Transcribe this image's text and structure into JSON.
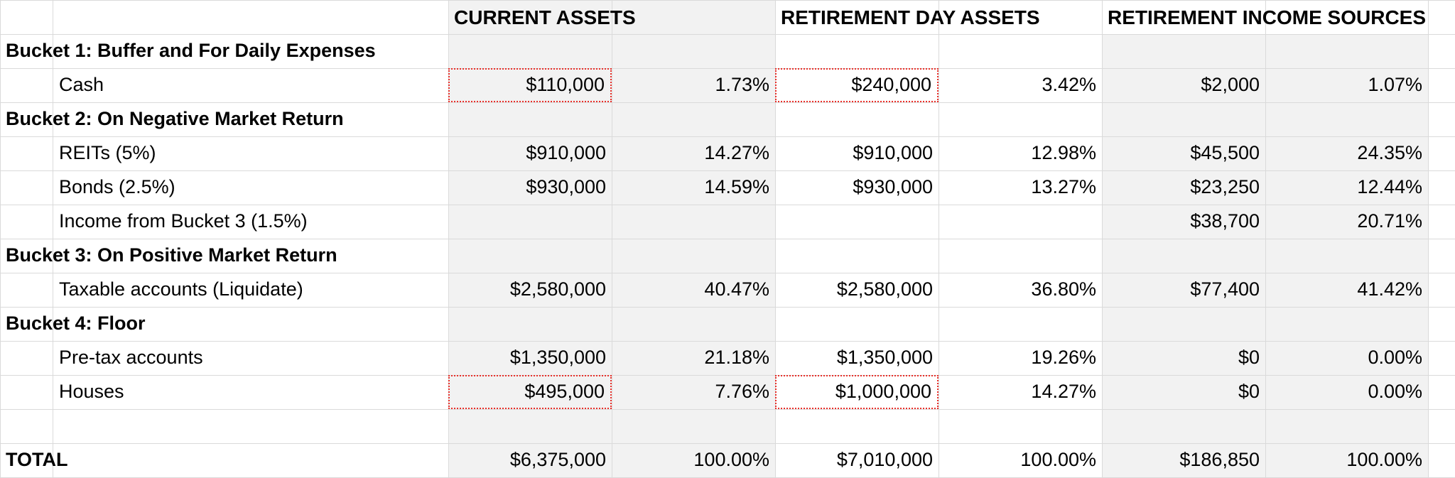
{
  "colors": {
    "shade": "#f2f2f2",
    "grid": "#dadada",
    "highlight_border": "#e8302a"
  },
  "headers": {
    "current": "CURRENT ASSETS",
    "retirement": "RETIREMENT DAY ASSETS",
    "income": "RETIREMENT INCOME SOURCES"
  },
  "buckets": {
    "b1": "Bucket 1: Buffer and For Daily Expenses",
    "b2": "Bucket 2: On Negative Market Return",
    "b3": "Bucket 3: On Positive Market Return",
    "b4": "Bucket 4: Floor"
  },
  "rows": {
    "cash": {
      "label": "Cash",
      "cur": "$110,000",
      "cur_pct": "1.73%",
      "ret": "$240,000",
      "ret_pct": "3.42%",
      "inc": "$2,000",
      "inc_pct": "1.07%"
    },
    "reits": {
      "label": "REITs (5%)",
      "cur": "$910,000",
      "cur_pct": "14.27%",
      "ret": "$910,000",
      "ret_pct": "12.98%",
      "inc": "$45,500",
      "inc_pct": "24.35%"
    },
    "bonds": {
      "label": "Bonds (2.5%)",
      "cur": "$930,000",
      "cur_pct": "14.59%",
      "ret": "$930,000",
      "ret_pct": "13.27%",
      "inc": "$23,250",
      "inc_pct": "12.44%"
    },
    "incb3": {
      "label": "Income from Bucket 3 (1.5%)",
      "inc": "$38,700",
      "inc_pct": "20.71%"
    },
    "taxable": {
      "label": "Taxable accounts (Liquidate)",
      "cur": "$2,580,000",
      "cur_pct": "40.47%",
      "ret": "$2,580,000",
      "ret_pct": "36.80%",
      "inc": "$77,400",
      "inc_pct": "41.42%"
    },
    "pretax": {
      "label": "Pre-tax accounts",
      "cur": "$1,350,000",
      "cur_pct": "21.18%",
      "ret": "$1,350,000",
      "ret_pct": "19.26%",
      "inc": "$0",
      "inc_pct": "0.00%"
    },
    "houses": {
      "label": "Houses",
      "cur": "$495,000",
      "cur_pct": "7.76%",
      "ret": "$1,000,000",
      "ret_pct": "14.27%",
      "inc": "$0",
      "inc_pct": "0.00%"
    }
  },
  "total": {
    "label": "TOTAL",
    "cur": "$6,375,000",
    "cur_pct": "100.00%",
    "ret": "$7,010,000",
    "ret_pct": "100.00%",
    "inc": "$186,850",
    "inc_pct": "100.00%"
  }
}
